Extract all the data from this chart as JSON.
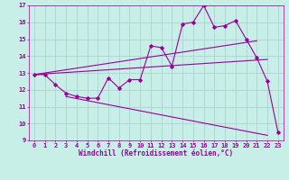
{
  "xlabel": "Windchill (Refroidissement éolien,°C)",
  "background_color": "#c8eee8",
  "line_color": "#990099",
  "grid_color": "#aacccc",
  "xlim": [
    -0.5,
    23.5
  ],
  "ylim": [
    9,
    17
  ],
  "xticks": [
    0,
    1,
    2,
    3,
    4,
    5,
    6,
    7,
    8,
    9,
    10,
    11,
    12,
    13,
    14,
    15,
    16,
    17,
    18,
    19,
    20,
    21,
    22,
    23
  ],
  "yticks": [
    9,
    10,
    11,
    12,
    13,
    14,
    15,
    16,
    17
  ],
  "data_line_x": [
    0,
    1,
    2,
    3,
    4,
    5,
    6,
    7,
    8,
    9,
    10,
    11,
    12,
    13,
    14,
    15,
    16,
    17,
    18,
    19,
    20,
    21,
    22,
    23
  ],
  "data_line_y": [
    12.9,
    12.9,
    12.3,
    11.8,
    11.6,
    11.5,
    11.5,
    12.7,
    12.1,
    12.6,
    12.6,
    14.6,
    14.5,
    13.4,
    15.9,
    16.0,
    17.0,
    15.7,
    15.8,
    16.1,
    15.0,
    13.9,
    12.5,
    9.5
  ],
  "trend_line1": [
    [
      0,
      12.9
    ],
    [
      21,
      14.9
    ]
  ],
  "trend_line2": [
    [
      0,
      12.9
    ],
    [
      22,
      13.8
    ]
  ],
  "trend_line3": [
    [
      3,
      11.6
    ],
    [
      22,
      9.3
    ]
  ],
  "tick_fontsize": 5,
  "xlabel_fontsize": 5.5
}
